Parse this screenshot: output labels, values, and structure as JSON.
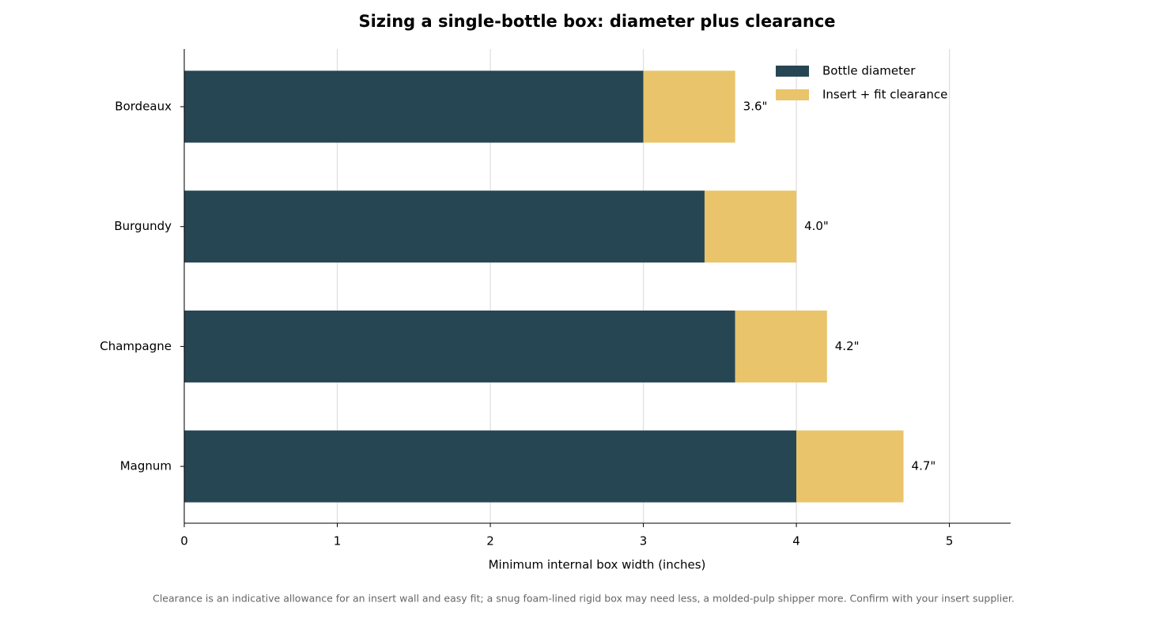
{
  "chart_data": {
    "type": "bar",
    "orientation": "horizontal",
    "stacked": true,
    "title": "Sizing a single-bottle box: diameter plus clearance",
    "xlabel": "Minimum internal box width (inches)",
    "note": "Clearance is an indicative allowance for an insert wall and easy fit; a snug foam-lined rigid box may need less, a molded-pulp shipper more. Confirm with your insert supplier.",
    "categories": [
      "Bordeaux",
      "Burgundy",
      "Champagne",
      "Magnum"
    ],
    "series": [
      {
        "name": "Bottle diameter",
        "color": "#274653",
        "values": [
          3.0,
          3.4,
          3.6,
          4.0
        ]
      },
      {
        "name": "Insert + fit clearance",
        "color": "#e9c46a",
        "values": [
          0.6,
          0.6,
          0.6,
          0.7
        ]
      }
    ],
    "totals": [
      3.6,
      4.0,
      4.2,
      4.7
    ],
    "total_labels": [
      "3.6\"",
      "4.0\"",
      "4.2\"",
      "4.7\""
    ],
    "xlim": [
      0,
      5.4
    ],
    "xticks": [
      0,
      1,
      2,
      3,
      4,
      5
    ],
    "grid": true,
    "legend": "upper right"
  }
}
